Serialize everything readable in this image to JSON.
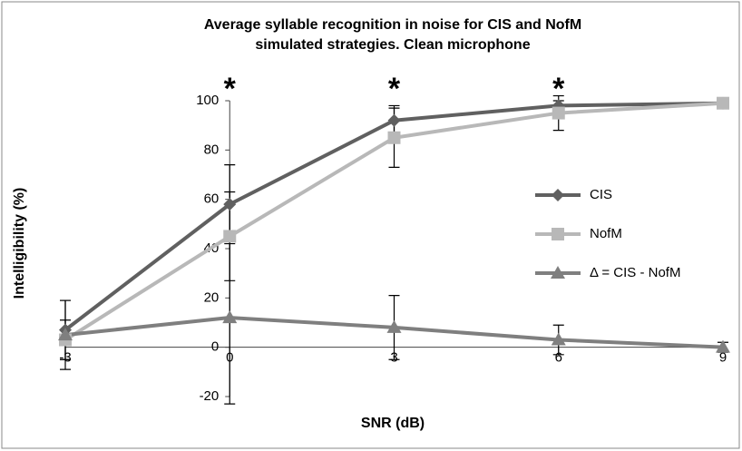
{
  "chart_data": {
    "type": "line",
    "title": [
      "Average syllable recognition in noise for CIS and NofM",
      "simulated strategies.  Clean microphone"
    ],
    "x_label": "SNR (dB)",
    "y_label": "Intelligibility (%)",
    "x": [
      -3,
      0,
      3,
      6,
      9
    ],
    "series": [
      {
        "name": "CIS",
        "color": "#606060",
        "marker": "diamond",
        "values": [
          7,
          58,
          92,
          98,
          99
        ],
        "errors": [
          12,
          16,
          6,
          2,
          2
        ]
      },
      {
        "name": "NofM",
        "color": "#b8b8b8",
        "marker": "square",
        "values": [
          3,
          45,
          85,
          95,
          99
        ],
        "errors": [
          8,
          18,
          12,
          7,
          2
        ]
      },
      {
        "name": "Δ = CIS - NofM",
        "color": "#7f7f7f",
        "marker": "triangle",
        "values": [
          5,
          12,
          8,
          3,
          0
        ],
        "errors": [
          14,
          35,
          13,
          6,
          2
        ]
      }
    ],
    "annotations": [
      {
        "text": "*",
        "x": 0
      },
      {
        "text": "*",
        "x": 3
      },
      {
        "text": "*",
        "x": 6
      }
    ],
    "xlim": [
      -3,
      9
    ],
    "xticks": [
      -3,
      0,
      3,
      6,
      9
    ],
    "ylim": [
      -20,
      100
    ],
    "yticks": [
      -20,
      0,
      20,
      40,
      60,
      80,
      100
    ],
    "grid": false,
    "legend": "right"
  }
}
